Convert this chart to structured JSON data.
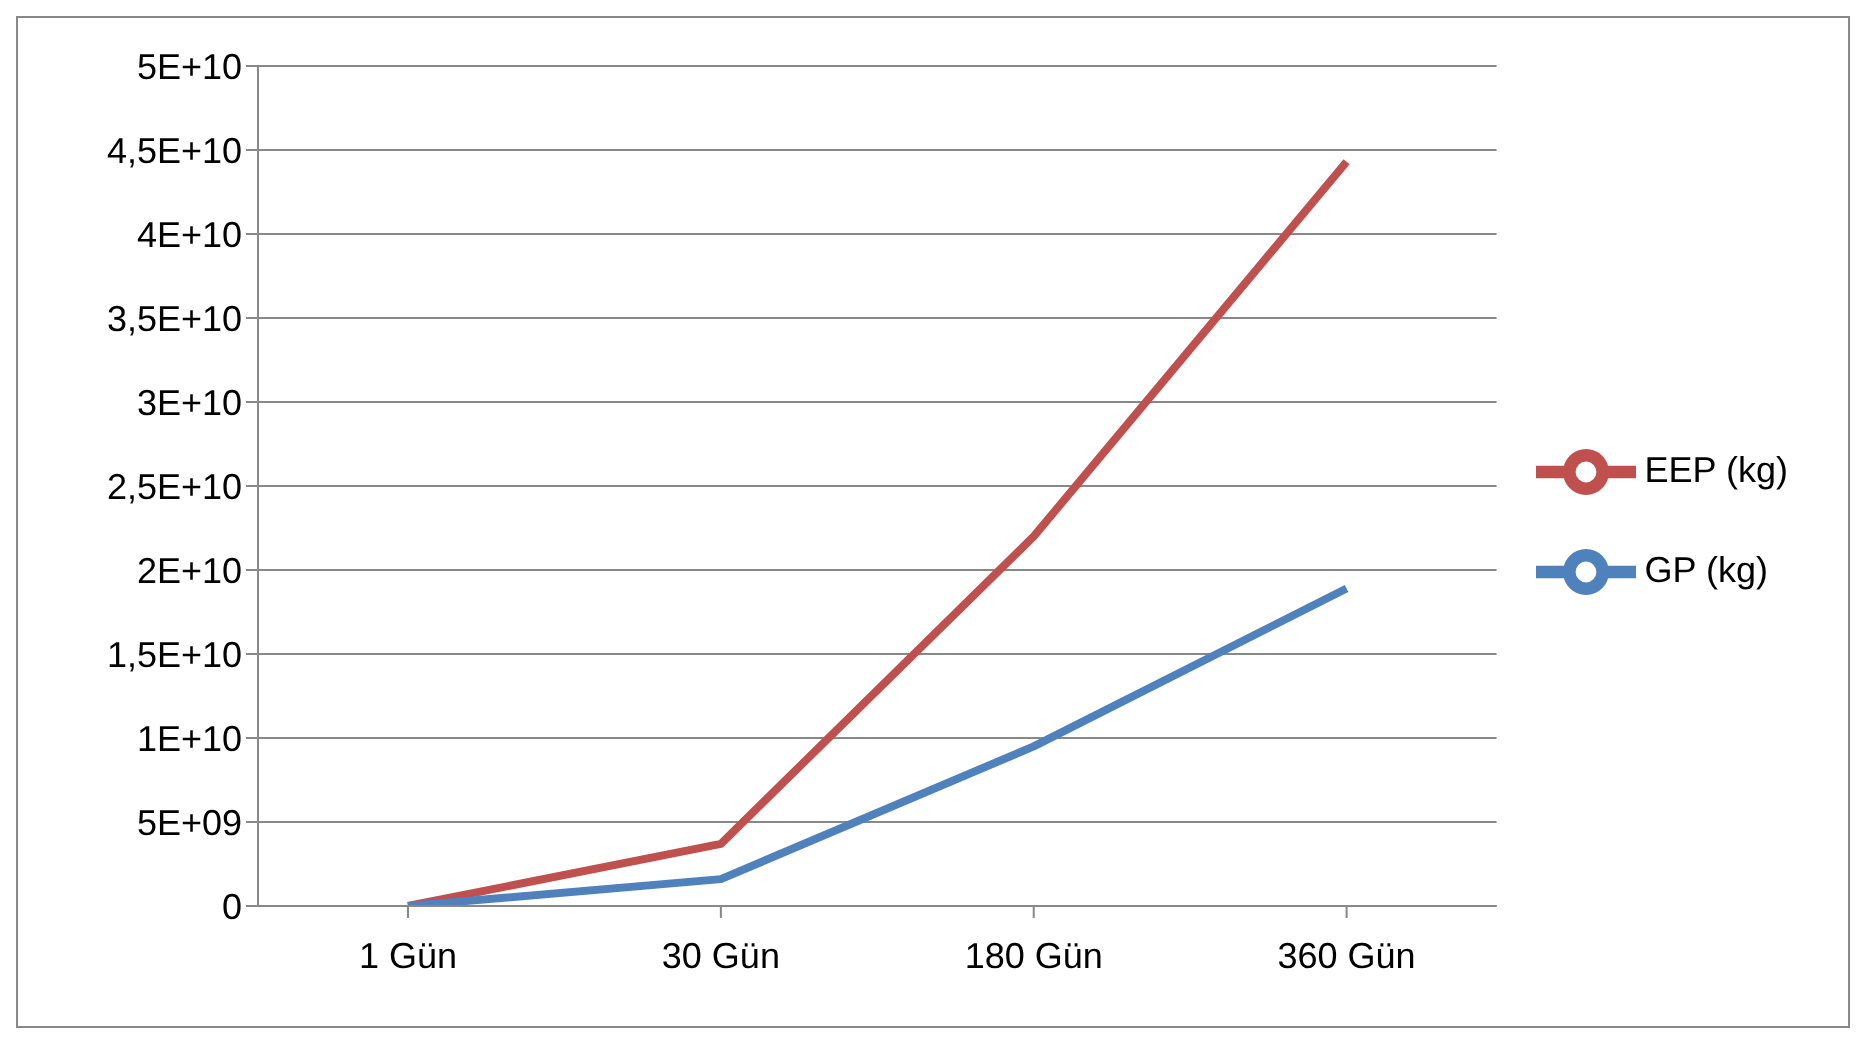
{
  "chart_data": {
    "type": "line",
    "categories": [
      "1 Gün",
      "30 Gün",
      "180 Gün",
      "360 Gün"
    ],
    "series": [
      {
        "name": "EEP (kg)",
        "color": "#c0504d",
        "values": [
          0,
          3700000000.0,
          22000000000.0,
          44300000000.0
        ]
      },
      {
        "name": "GP (kg)",
        "color": "#4f81bd",
        "values": [
          0,
          1600000000.0,
          9500000000.0,
          18900000000.0
        ]
      }
    ],
    "ylim": [
      0,
      50000000000.0
    ],
    "yticks": [
      0,
      {
        "value": 5000000000.0,
        "label": "5E+09"
      },
      {
        "value": 10000000000.0,
        "label": "1E+10"
      },
      {
        "value": 15000000000.0,
        "label": "1,5E+10"
      },
      {
        "value": 20000000000.0,
        "label": "2E+10"
      },
      {
        "value": 25000000000.0,
        "label": "2,5E+10"
      },
      {
        "value": 30000000000.0,
        "label": "3E+10"
      },
      {
        "value": 35000000000.0,
        "label": "3,5E+10"
      },
      {
        "value": 40000000000.0,
        "label": "4E+10"
      },
      {
        "value": 45000000000.0,
        "label": "4,5E+10"
      },
      {
        "value": 50000000000.0,
        "label": "5E+10"
      }
    ],
    "grid": "y",
    "legend": "right",
    "marker": "none",
    "line_style": "solid"
  }
}
